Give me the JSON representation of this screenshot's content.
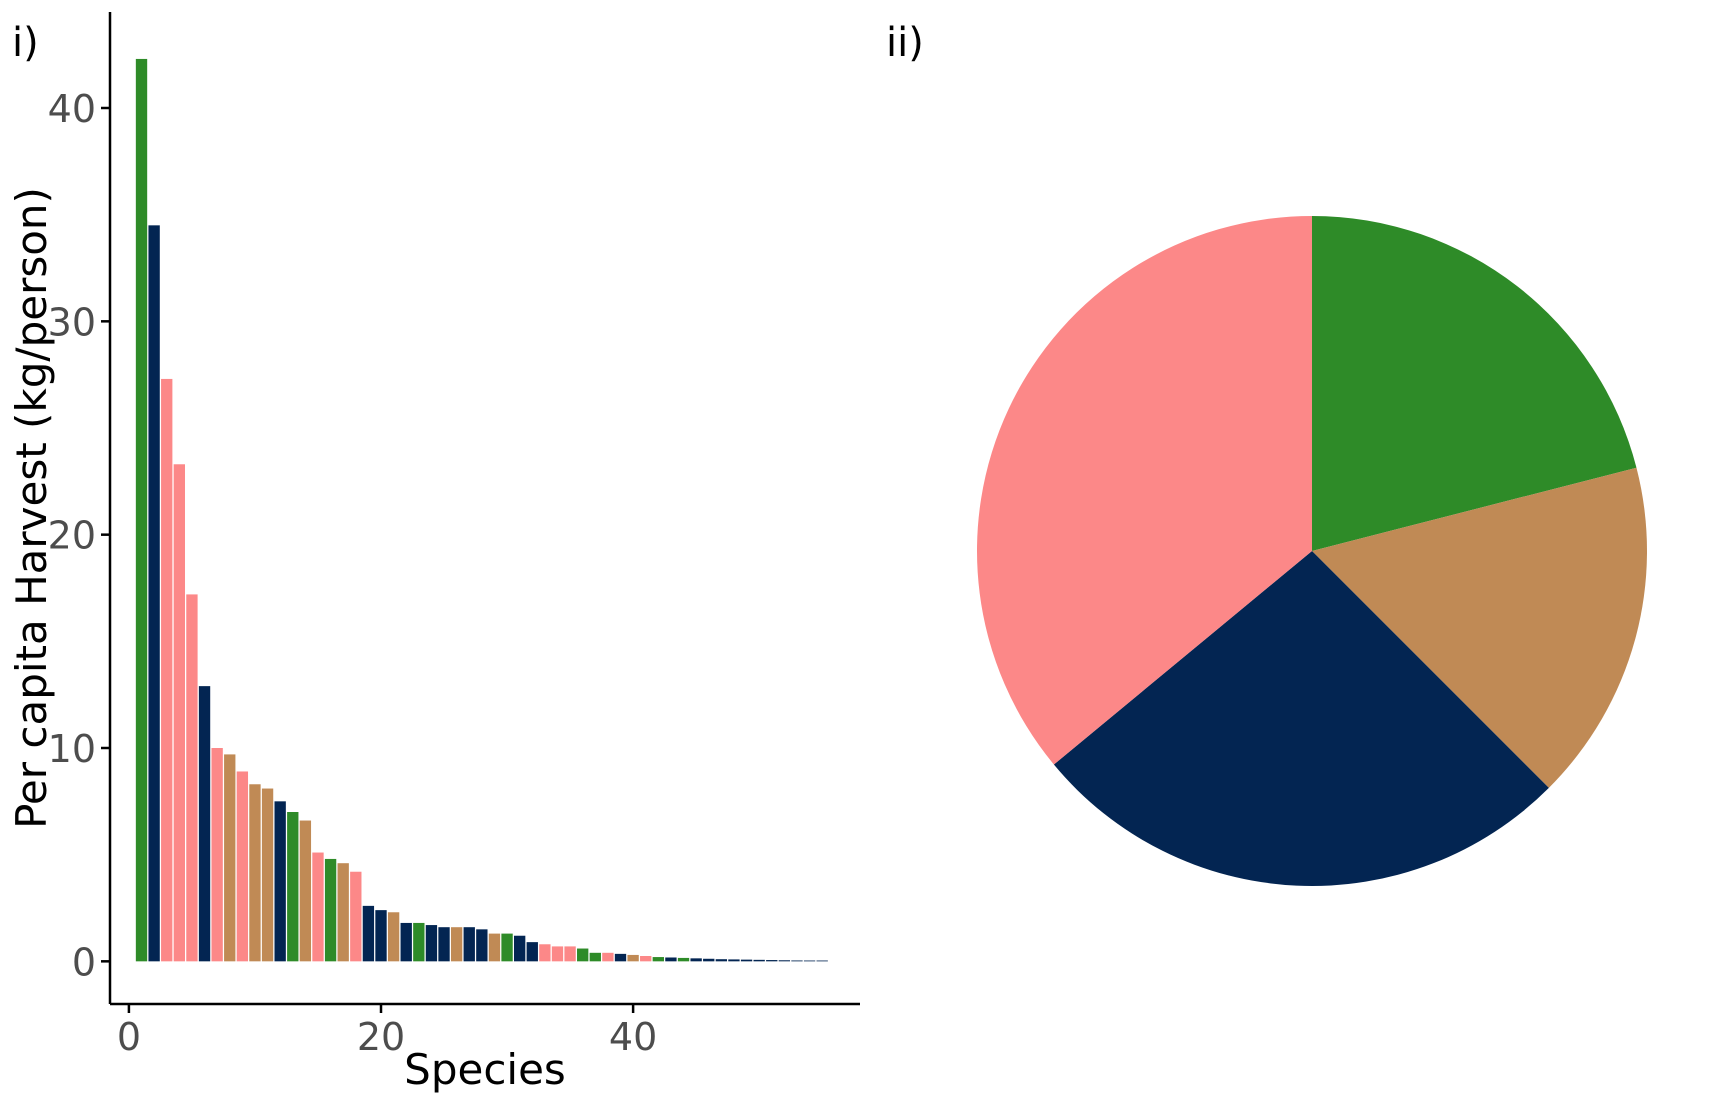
{
  "panels": {
    "bar_label": "i)",
    "pie_label": "ii)"
  },
  "colors": {
    "green": "#2e8b28",
    "navy": "#032552",
    "pink": "#fc8888",
    "tan": "#c08a55",
    "axis": "#000000",
    "tick_text": "#4d4d4d"
  },
  "chart_data": [
    {
      "type": "bar",
      "panel": "i)",
      "xlabel": "Species",
      "ylabel": "Per capita Harvest (kg/person)",
      "xlim": [
        -1.5,
        58
      ],
      "ylim": [
        -2,
        44.5
      ],
      "xticks": [
        0,
        20,
        40
      ],
      "yticks": [
        0,
        10,
        20,
        30,
        40
      ],
      "grid": false,
      "legend": "none",
      "bars": [
        {
          "x": 1,
          "value": 42.3,
          "color": "green"
        },
        {
          "x": 2,
          "value": 34.5,
          "color": "navy"
        },
        {
          "x": 3,
          "value": 27.3,
          "color": "pink"
        },
        {
          "x": 4,
          "value": 23.3,
          "color": "pink"
        },
        {
          "x": 5,
          "value": 17.2,
          "color": "pink"
        },
        {
          "x": 6,
          "value": 12.9,
          "color": "navy"
        },
        {
          "x": 7,
          "value": 10.0,
          "color": "pink"
        },
        {
          "x": 8,
          "value": 9.7,
          "color": "tan"
        },
        {
          "x": 9,
          "value": 8.9,
          "color": "pink"
        },
        {
          "x": 10,
          "value": 8.3,
          "color": "tan"
        },
        {
          "x": 11,
          "value": 8.1,
          "color": "tan"
        },
        {
          "x": 12,
          "value": 7.5,
          "color": "navy"
        },
        {
          "x": 13,
          "value": 7.0,
          "color": "green"
        },
        {
          "x": 14,
          "value": 6.6,
          "color": "tan"
        },
        {
          "x": 15,
          "value": 5.1,
          "color": "pink"
        },
        {
          "x": 16,
          "value": 4.8,
          "color": "green"
        },
        {
          "x": 17,
          "value": 4.6,
          "color": "tan"
        },
        {
          "x": 18,
          "value": 4.2,
          "color": "pink"
        },
        {
          "x": 19,
          "value": 2.6,
          "color": "navy"
        },
        {
          "x": 20,
          "value": 2.4,
          "color": "navy"
        },
        {
          "x": 21,
          "value": 2.3,
          "color": "tan"
        },
        {
          "x": 22,
          "value": 1.8,
          "color": "navy"
        },
        {
          "x": 23,
          "value": 1.8,
          "color": "green"
        },
        {
          "x": 24,
          "value": 1.7,
          "color": "navy"
        },
        {
          "x": 25,
          "value": 1.6,
          "color": "navy"
        },
        {
          "x": 26,
          "value": 1.6,
          "color": "tan"
        },
        {
          "x": 27,
          "value": 1.6,
          "color": "navy"
        },
        {
          "x": 28,
          "value": 1.5,
          "color": "navy"
        },
        {
          "x": 29,
          "value": 1.3,
          "color": "tan"
        },
        {
          "x": 30,
          "value": 1.3,
          "color": "green"
        },
        {
          "x": 31,
          "value": 1.2,
          "color": "navy"
        },
        {
          "x": 32,
          "value": 0.9,
          "color": "navy"
        },
        {
          "x": 33,
          "value": 0.8,
          "color": "pink"
        },
        {
          "x": 34,
          "value": 0.7,
          "color": "pink"
        },
        {
          "x": 35,
          "value": 0.7,
          "color": "pink"
        },
        {
          "x": 36,
          "value": 0.6,
          "color": "green"
        },
        {
          "x": 37,
          "value": 0.4,
          "color": "green"
        },
        {
          "x": 38,
          "value": 0.4,
          "color": "pink"
        },
        {
          "x": 39,
          "value": 0.35,
          "color": "navy"
        },
        {
          "x": 40,
          "value": 0.3,
          "color": "tan"
        },
        {
          "x": 41,
          "value": 0.25,
          "color": "pink"
        },
        {
          "x": 42,
          "value": 0.2,
          "color": "green"
        },
        {
          "x": 43,
          "value": 0.18,
          "color": "navy"
        },
        {
          "x": 44,
          "value": 0.16,
          "color": "green"
        },
        {
          "x": 45,
          "value": 0.14,
          "color": "navy"
        },
        {
          "x": 46,
          "value": 0.12,
          "color": "navy"
        },
        {
          "x": 47,
          "value": 0.1,
          "color": "navy"
        },
        {
          "x": 48,
          "value": 0.09,
          "color": "navy"
        },
        {
          "x": 49,
          "value": 0.08,
          "color": "navy"
        },
        {
          "x": 50,
          "value": 0.07,
          "color": "navy"
        },
        {
          "x": 51,
          "value": 0.06,
          "color": "navy"
        },
        {
          "x": 52,
          "value": 0.05,
          "color": "navy"
        },
        {
          "x": 53,
          "value": 0.04,
          "color": "navy"
        },
        {
          "x": 54,
          "value": 0.03,
          "color": "navy"
        },
        {
          "x": 55,
          "value": 0.02,
          "color": "navy"
        }
      ]
    },
    {
      "type": "pie",
      "panel": "ii)",
      "start_angle_deg": 0,
      "direction": "clockwise",
      "legend": "none",
      "slices": [
        {
          "color": "green",
          "share": 0.21
        },
        {
          "color": "tan",
          "share": 0.165
        },
        {
          "color": "navy",
          "share": 0.265
        },
        {
          "color": "pink",
          "share": 0.36
        }
      ]
    }
  ]
}
